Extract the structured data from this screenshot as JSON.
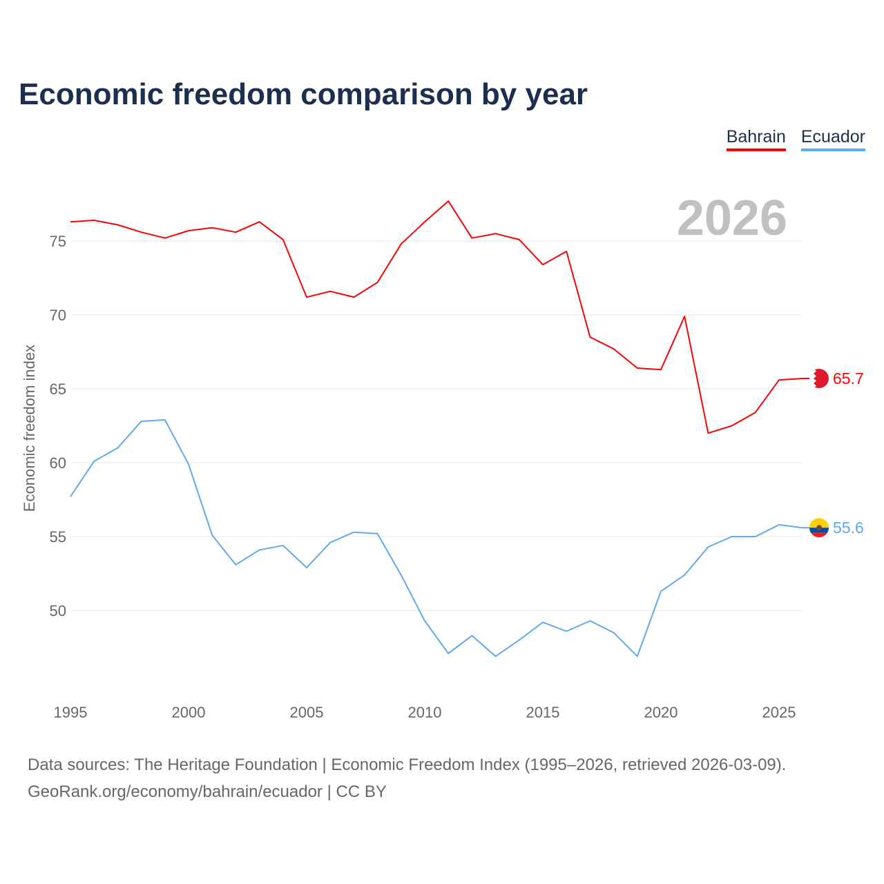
{
  "title": "Economic freedom comparison by year",
  "footer": {
    "line1": "Data sources: The Heritage Foundation | Economic Freedom Index (1995–2026, retrieved 2026-03-09).",
    "line2": "GeoRank.org/economy/bahrain/ecuador | CC BY"
  },
  "chart_data": {
    "type": "line",
    "title": "Economic freedom comparison by year",
    "xlabel": "",
    "ylabel": "Economic freedom index",
    "year_label": "2026",
    "x": [
      1995,
      1996,
      1997,
      1998,
      1999,
      2000,
      2001,
      2002,
      2003,
      2004,
      2005,
      2006,
      2007,
      2008,
      2009,
      2010,
      2011,
      2012,
      2013,
      2014,
      2015,
      2016,
      2017,
      2018,
      2019,
      2020,
      2021,
      2022,
      2023,
      2024,
      2025,
      2026
    ],
    "xticks": [
      "1995",
      "2000",
      "2005",
      "2010",
      "2015",
      "2020",
      "2025"
    ],
    "yticks": [
      "50",
      "55",
      "60",
      "65",
      "70",
      "75"
    ],
    "ylim": [
      44.3,
      79.2
    ],
    "grid": true,
    "legend_position": "top-right",
    "series": [
      {
        "name": "Bahrain",
        "color": "#ff0000",
        "end_label": "65.7",
        "values": [
          76.3,
          76.4,
          76.1,
          75.6,
          75.2,
          75.7,
          75.9,
          75.6,
          76.3,
          75.1,
          71.2,
          71.6,
          71.2,
          72.2,
          74.8,
          76.3,
          77.7,
          75.2,
          75.5,
          75.1,
          73.4,
          74.3,
          68.5,
          67.7,
          66.4,
          66.3,
          69.9,
          62.0,
          62.5,
          63.4,
          65.6,
          65.7
        ]
      },
      {
        "name": "Ecuador",
        "color": "#5ea9ef",
        "end_label": "55.6",
        "values": [
          57.7,
          60.1,
          61.0,
          62.8,
          62.9,
          59.9,
          55.1,
          53.1,
          54.1,
          54.4,
          52.9,
          54.6,
          55.3,
          55.2,
          52.4,
          49.3,
          47.1,
          48.3,
          46.9,
          48.0,
          49.2,
          48.6,
          49.3,
          48.5,
          46.9,
          51.3,
          52.4,
          54.3,
          55.0,
          55.0,
          55.8,
          55.6
        ]
      }
    ]
  }
}
